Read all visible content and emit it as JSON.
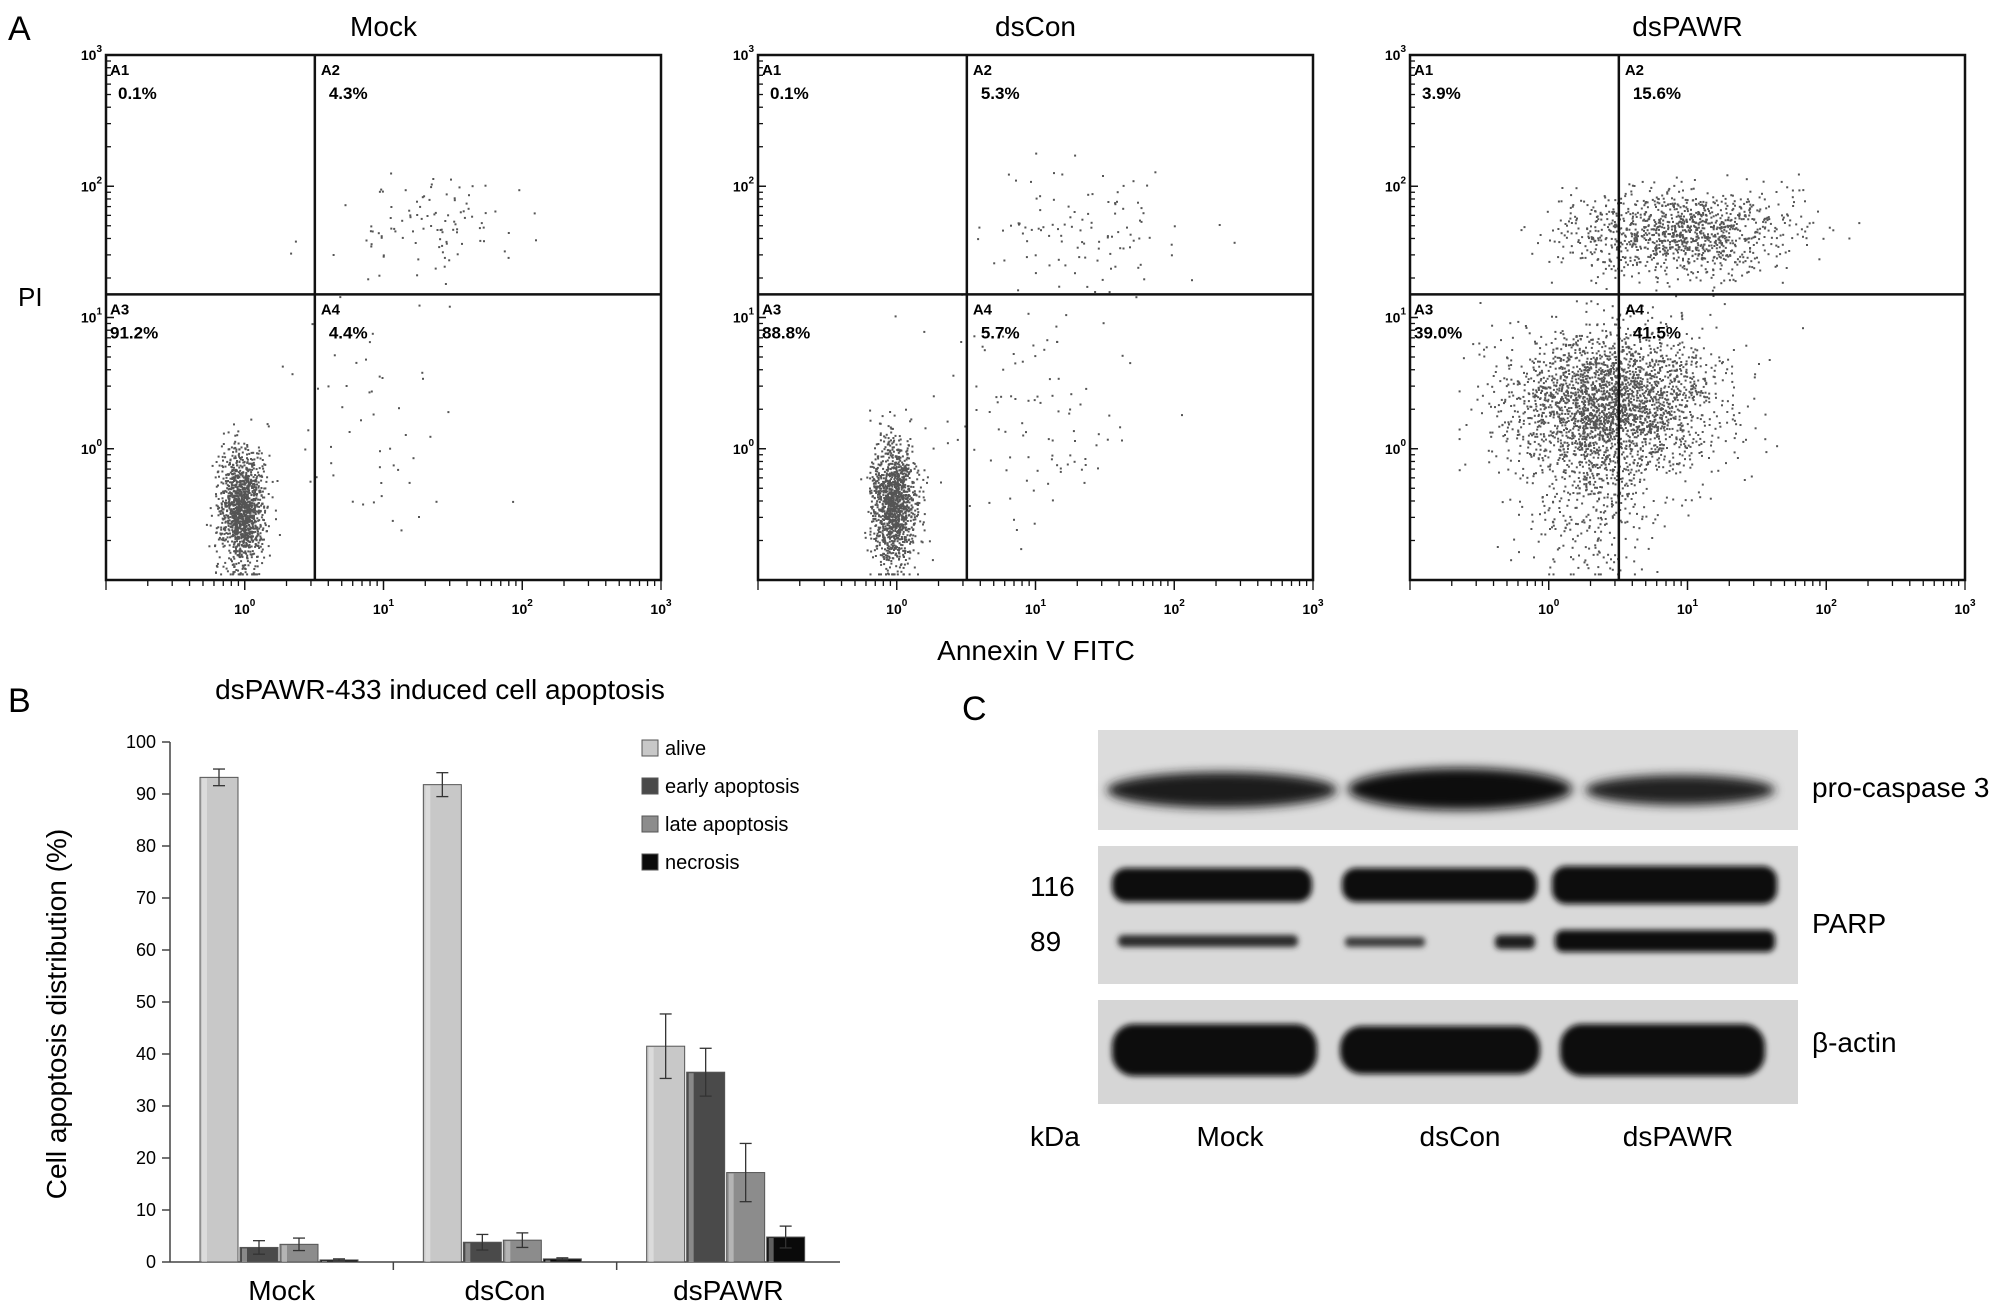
{
  "panel_letters": {
    "a": "A",
    "b": "B",
    "c": "C"
  },
  "chart_data": [
    {
      "type": "scatter",
      "panel": "A",
      "ylabel": "PI",
      "xlabel": "Annexin V FITC",
      "xscale": "log",
      "yscale": "log",
      "xlim": [
        0.1,
        1000
      ],
      "ylim": [
        0.1,
        1000
      ],
      "x_ticks": [
        "10^0",
        "10^1",
        "10^2",
        "10^3"
      ],
      "y_ticks": [
        "10^0",
        "10^1",
        "10^2",
        "10^3"
      ],
      "gate": {
        "x": 3.2,
        "y": 15
      },
      "quadrant_names": [
        "A1",
        "A2",
        "A3",
        "A4"
      ],
      "plots": [
        {
          "title": "Mock",
          "quadrants": {
            "A1": "0.1%",
            "A2": "4.3%",
            "A3": "91.2%",
            "A4": "4.4%"
          }
        },
        {
          "title": "dsCon",
          "quadrants": {
            "A1": "0.1%",
            "A2": "5.3%",
            "A3": "88.8%",
            "A4": "5.7%"
          }
        },
        {
          "title": "dsPAWR",
          "quadrants": {
            "A1": "3.9%",
            "A2": "15.6%",
            "A3": "39.0%",
            "A4": "41.5%"
          }
        }
      ]
    },
    {
      "type": "bar",
      "panel": "B",
      "title": "dsPAWR-433 induced cell apoptosis",
      "ylabel": "Cell apoptosis distribution (%)",
      "xlabel": "",
      "ylim": [
        0,
        100
      ],
      "yticks": [
        0,
        10,
        20,
        30,
        40,
        50,
        60,
        70,
        80,
        90,
        100
      ],
      "categories": [
        "Mock",
        "dsCon",
        "dsPAWR"
      ],
      "legend_position": "top-right",
      "grid": false,
      "series": [
        {
          "name": "alive",
          "color": "#c8c8c8",
          "values": [
            93.2,
            91.8,
            41.5
          ],
          "errors": [
            1.6,
            2.3,
            6.2
          ]
        },
        {
          "name": "early apoptosis",
          "color": "#4a4a4a",
          "values": [
            2.8,
            3.8,
            36.5
          ],
          "errors": [
            1.3,
            1.5,
            4.6
          ]
        },
        {
          "name": "late apoptosis",
          "color": "#8c8c8c",
          "values": [
            3.4,
            4.2,
            17.2
          ],
          "errors": [
            1.2,
            1.4,
            5.6
          ]
        },
        {
          "name": "necrosis",
          "color": "#0a0a0a",
          "values": [
            0.4,
            0.6,
            4.8
          ],
          "errors": [
            0.2,
            0.2,
            2.1
          ]
        }
      ]
    }
  ],
  "western_blot": {
    "panel": "C",
    "lane_labels": [
      "Mock",
      "dsCon",
      "dsPAWR"
    ],
    "unit_label": "kDa",
    "blots": [
      {
        "protein": "pro-caspase 3",
        "marks": []
      },
      {
        "protein": "PARP",
        "marks": [
          "116",
          "89"
        ]
      },
      {
        "protein": "β-actin",
        "marks": []
      }
    ]
  }
}
